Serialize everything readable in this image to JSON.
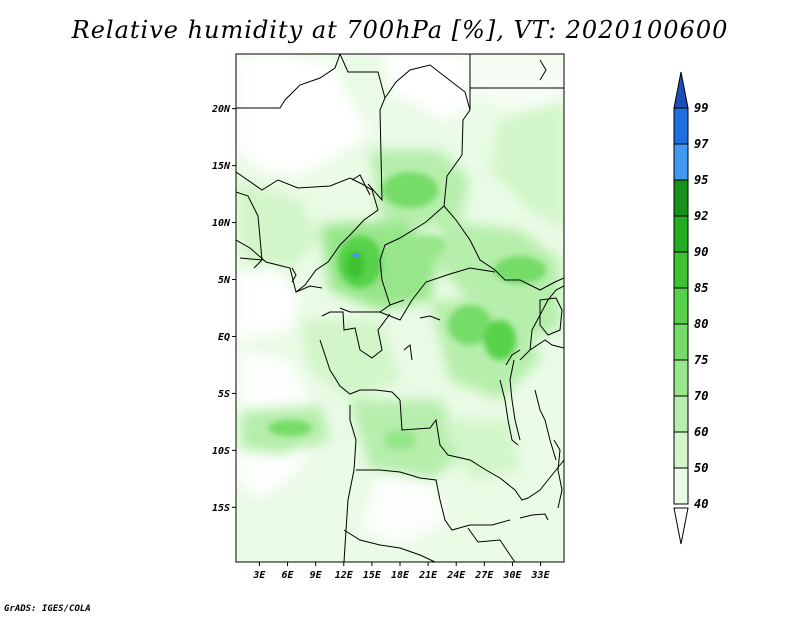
{
  "title": "Relative humidity at 700hPa [%], VT: 2020100600",
  "credit": "GrADS: IGES/COLA",
  "map": {
    "lat_labels": [
      "20N",
      "15N",
      "10N",
      "5N",
      "EQ",
      "5S",
      "10S",
      "15S"
    ],
    "lat_values": [
      20,
      15,
      10,
      5,
      0,
      -5,
      -10,
      -15
    ],
    "lon_labels": [
      "3E",
      "6E",
      "9E",
      "12E",
      "15E",
      "18E",
      "21E",
      "24E",
      "27E",
      "30E",
      "33E"
    ],
    "lon_values": [
      3,
      6,
      9,
      12,
      15,
      18,
      21,
      24,
      27,
      30,
      33
    ],
    "lon_range": [
      0.5,
      35.5
    ],
    "lat_range": [
      -19.8,
      24.8
    ]
  },
  "colorbar": {
    "labels": [
      "99",
      "97",
      "95",
      "92",
      "90",
      "85",
      "80",
      "75",
      "70",
      "60",
      "50",
      "40"
    ],
    "colors": {
      "below_40": "#ffffff",
      "40_50": "#eafbe6",
      "50_60": "#d2f5c9",
      "60_70": "#b6eeab",
      "70_75": "#97e68a",
      "75_80": "#76dc68",
      "80_85": "#57d14a",
      "85_90": "#3ec232",
      "90_92": "#24ad23",
      "92_95": "#179219",
      "95_97": "#4199f1",
      "97_99": "#1e6fe0",
      "above_99": "#1a4fb8"
    }
  }
}
